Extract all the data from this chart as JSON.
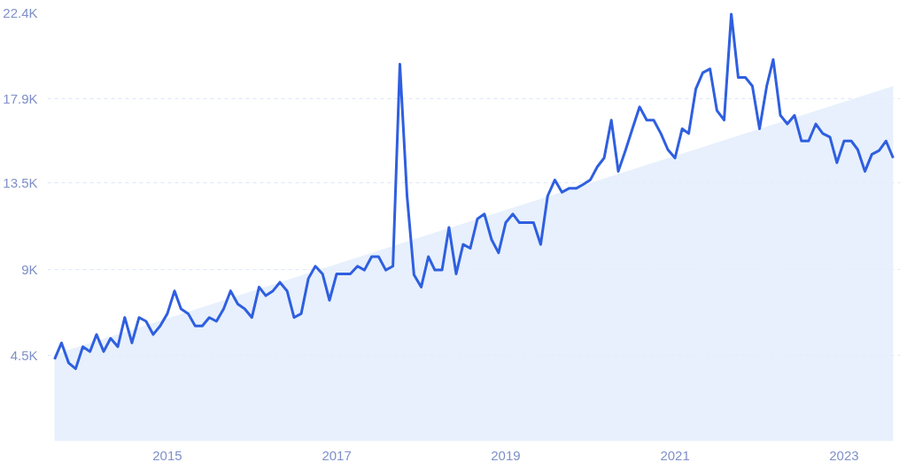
{
  "chart_data": {
    "type": "line",
    "x": [
      "2013-09",
      "2013-10",
      "2013-11",
      "2013-12",
      "2014-01",
      "2014-02",
      "2014-03",
      "2014-04",
      "2014-05",
      "2014-06",
      "2014-07",
      "2014-08",
      "2014-09",
      "2014-10",
      "2014-11",
      "2014-12",
      "2015-01",
      "2015-02",
      "2015-03",
      "2015-04",
      "2015-05",
      "2015-06",
      "2015-07",
      "2015-08",
      "2015-09",
      "2015-10",
      "2015-11",
      "2015-12",
      "2016-01",
      "2016-02",
      "2016-03",
      "2016-04",
      "2016-05",
      "2016-06",
      "2016-07",
      "2016-08",
      "2016-09",
      "2016-10",
      "2016-11",
      "2016-12",
      "2017-01",
      "2017-02",
      "2017-03",
      "2017-04",
      "2017-05",
      "2017-06",
      "2017-07",
      "2017-08",
      "2017-09",
      "2017-10",
      "2017-11",
      "2017-12",
      "2018-01",
      "2018-02",
      "2018-03",
      "2018-04",
      "2018-05",
      "2018-06",
      "2018-07",
      "2018-08",
      "2018-09",
      "2018-10",
      "2018-11",
      "2018-12",
      "2019-01",
      "2019-02",
      "2019-03",
      "2019-04",
      "2019-05",
      "2019-06",
      "2019-07",
      "2019-08",
      "2019-09",
      "2019-10",
      "2019-11",
      "2019-12",
      "2020-01",
      "2020-02",
      "2020-03",
      "2020-04",
      "2020-05",
      "2020-06",
      "2020-07",
      "2020-08",
      "2020-09",
      "2020-10",
      "2020-11",
      "2020-12",
      "2021-01",
      "2021-02",
      "2021-03",
      "2021-04",
      "2021-05",
      "2021-06",
      "2021-07",
      "2021-08",
      "2021-09",
      "2021-10",
      "2021-11",
      "2021-12",
      "2022-01",
      "2022-02",
      "2022-03",
      "2022-04",
      "2022-05",
      "2022-06",
      "2022-07",
      "2022-08",
      "2022-09",
      "2022-10",
      "2022-11",
      "2022-12",
      "2023-01",
      "2023-02",
      "2023-03",
      "2023-04",
      "2023-05",
      "2023-06",
      "2023-07",
      "2023-08"
    ],
    "series": [
      {
        "type": "area",
        "color": "#e3edfb",
        "x": [
          "2013-09",
          "2023-08"
        ],
        "values": [
          4540,
          18570
        ]
      },
      {
        "color": "#2f5fe0",
        "values": [
          4290,
          5140,
          4090,
          3790,
          4940,
          4690,
          5580,
          4690,
          5380,
          4940,
          6470,
          5140,
          6470,
          6270,
          5580,
          6030,
          6670,
          7860,
          6920,
          6670,
          6030,
          6030,
          6470,
          6270,
          6920,
          7860,
          7170,
          6920,
          6470,
          8060,
          7610,
          7860,
          8310,
          7860,
          6470,
          6670,
          8510,
          9150,
          8750,
          7370,
          8750,
          8750,
          8750,
          9150,
          8950,
          9650,
          9650,
          8950,
          9150,
          19720,
          12820,
          8700,
          8060,
          9650,
          8950,
          8950,
          11180,
          8750,
          10290,
          10090,
          11630,
          11880,
          10540,
          9850,
          11430,
          11880,
          11430,
          11430,
          11430,
          10290,
          12820,
          13660,
          13020,
          13220,
          13220,
          13420,
          13660,
          14360,
          14810,
          16790,
          14110,
          15200,
          16340,
          17480,
          16790,
          16790,
          16090,
          15250,
          14810,
          16340,
          16090,
          18430,
          19270,
          19470,
          17290,
          16790,
          22340,
          19020,
          19020,
          18570,
          16340,
          18570,
          19960,
          17040,
          16590,
          17040,
          15700,
          15700,
          16590,
          16090,
          15900,
          14560,
          15700,
          15700,
          15250,
          14110,
          15000,
          15200,
          15700,
          14810
        ]
      }
    ],
    "xlim": [
      "2013-08",
      "2023-09"
    ],
    "xticks": [
      "2015",
      "2017",
      "2019",
      "2021",
      "2023"
    ],
    "ylim": [
      0,
      22400
    ],
    "yticks": [
      {
        "value": 4500,
        "label": "4.5K"
      },
      {
        "value": 9000,
        "label": "9K"
      },
      {
        "value": 13500,
        "label": "13.5K"
      },
      {
        "value": 17900,
        "label": "17.9K"
      },
      {
        "value": 22400,
        "label": "22.4K"
      }
    ],
    "grid": "y",
    "line_style": "solid",
    "marker": "none"
  }
}
